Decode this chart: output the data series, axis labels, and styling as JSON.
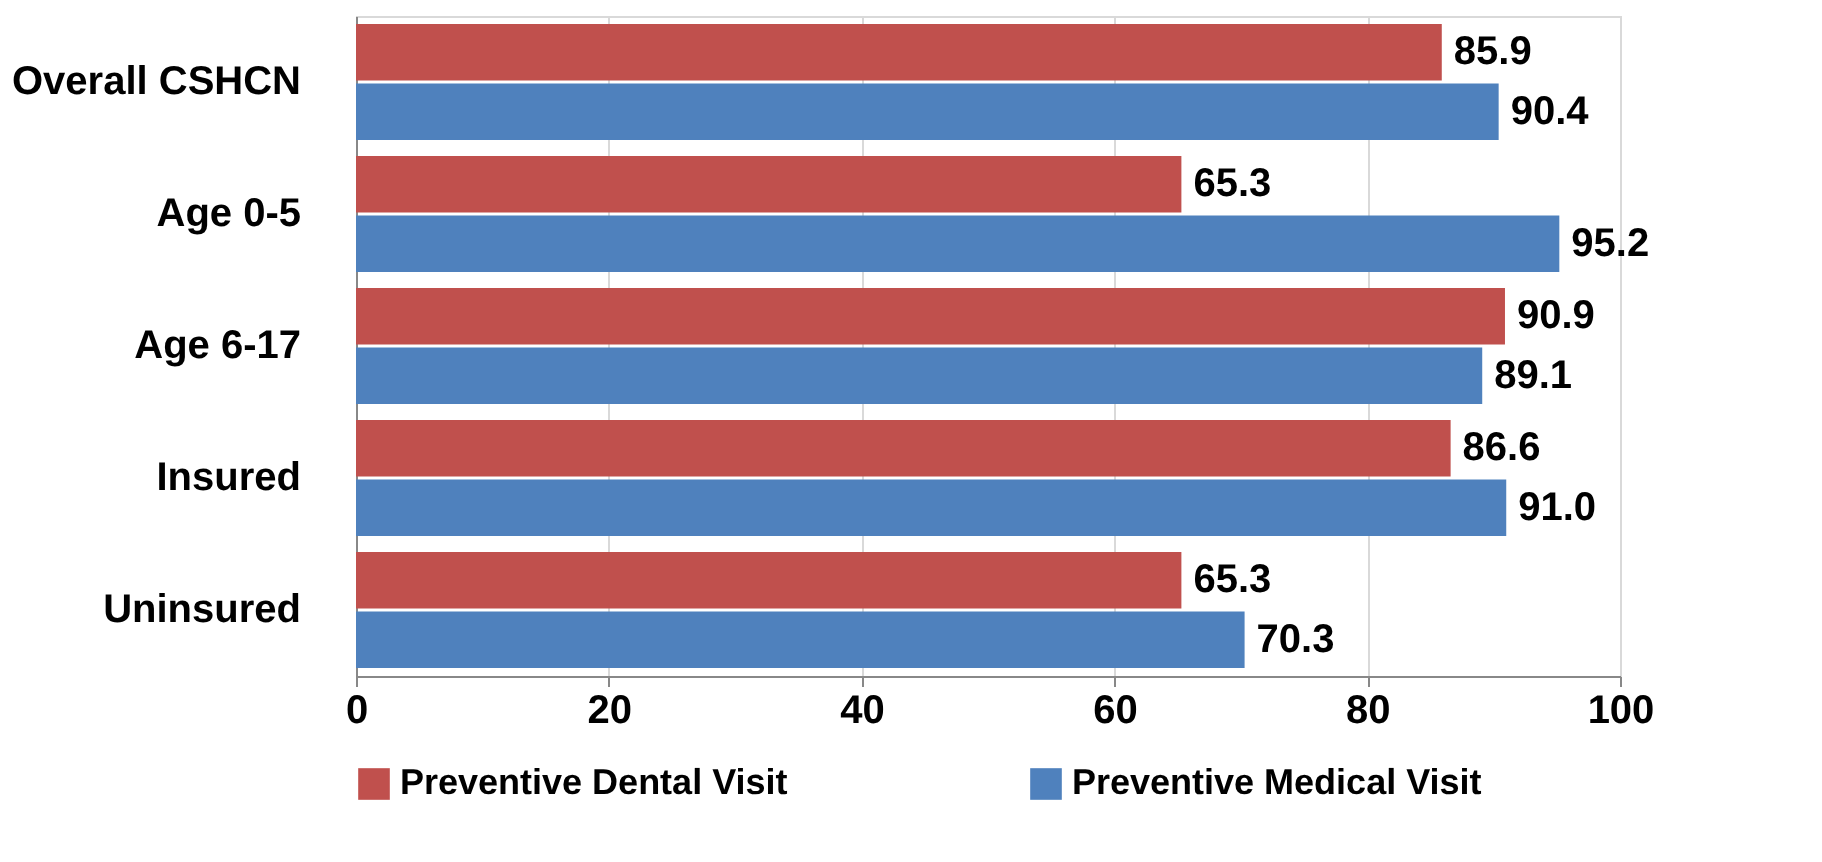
{
  "chart_data": {
    "type": "bar",
    "orientation": "horizontal",
    "categories": [
      "Overall CSHCN",
      "Age 0-5",
      "Age 6-17",
      "Insured",
      "Uninsured"
    ],
    "series": [
      {
        "name": "Preventive Dental Visit",
        "color": "#c0504d",
        "values": [
          85.9,
          65.3,
          90.9,
          86.6,
          65.3
        ],
        "value_labels": [
          "85.9",
          "65.3",
          "90.9",
          "86.6",
          "65.3"
        ]
      },
      {
        "name": "Preventive Medical Visit",
        "color": "#4f81bd",
        "values": [
          90.4,
          95.2,
          89.1,
          91.0,
          70.3
        ],
        "value_labels": [
          "90.4",
          "95.2",
          "89.1",
          "91.0",
          "70.3"
        ]
      }
    ],
    "xlim": [
      0,
      100
    ],
    "xticks": [
      0,
      20,
      40,
      60,
      80,
      100
    ],
    "grid": "x",
    "legend": "bottom"
  }
}
